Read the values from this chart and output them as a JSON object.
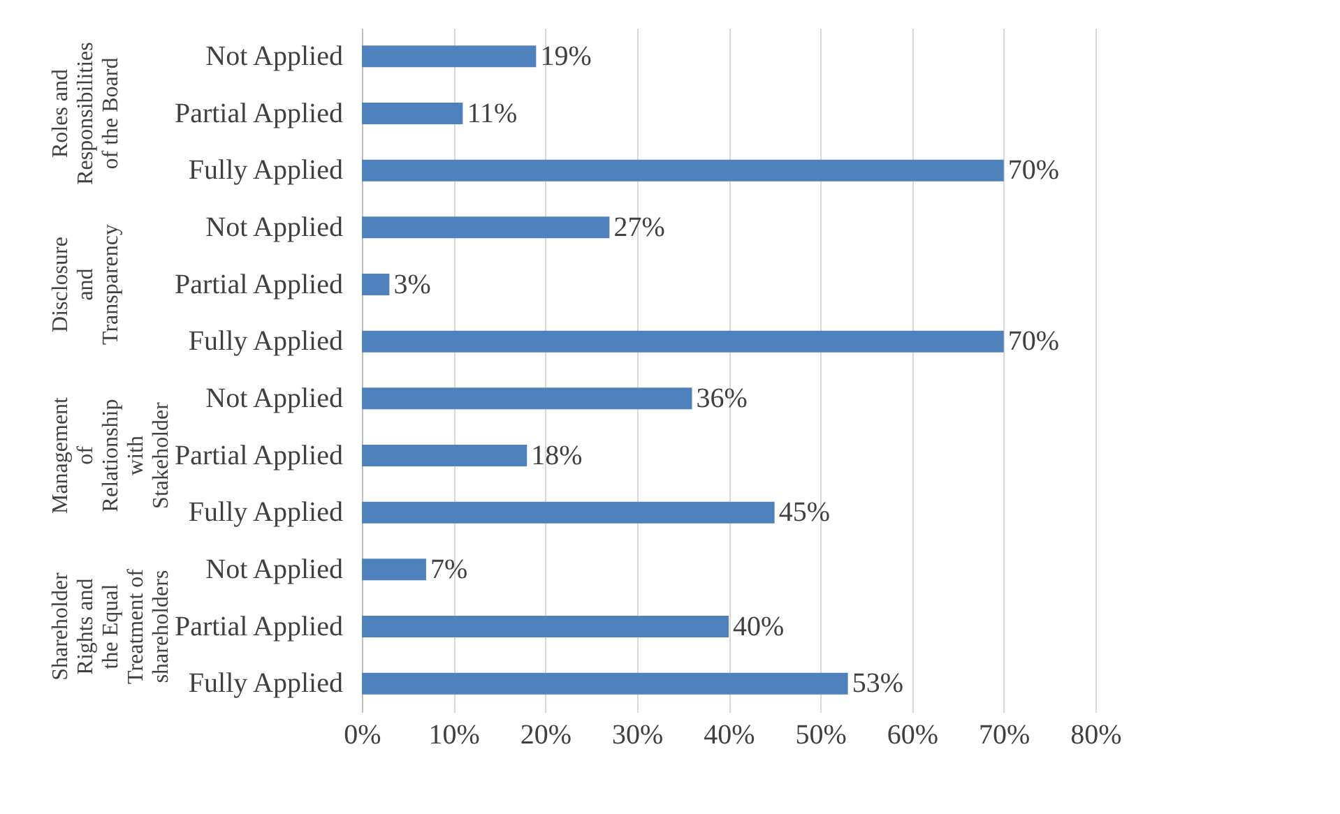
{
  "chart_data": {
    "type": "bar",
    "orientation": "horizontal",
    "categories": [
      "Not Applied",
      "Partial Applied",
      "Fully Applied",
      "Not Applied",
      "Partial Applied",
      "Fully Applied",
      "Not Applied",
      "Partial Applied",
      "Fully Applied",
      "Not Applied",
      "Partial Applied",
      "Fully Applied"
    ],
    "values": [
      19,
      11,
      70,
      27,
      3,
      70,
      36,
      18,
      45,
      7,
      40,
      53
    ],
    "value_labels": [
      "19%",
      "11%",
      "70%",
      "27%",
      "3%",
      "70%",
      "36%",
      "18%",
      "45%",
      "7%",
      "40%",
      "53%"
    ],
    "color": "#4f81bd",
    "xlim": [
      0,
      80
    ],
    "xticks": [
      {
        "value": 0,
        "label": "0%"
      },
      {
        "value": 10,
        "label": "10%"
      },
      {
        "value": 20,
        "label": "20%"
      },
      {
        "value": 30,
        "label": "30%"
      },
      {
        "value": 40,
        "label": "40%"
      },
      {
        "value": 50,
        "label": "50%"
      },
      {
        "value": 60,
        "label": "60%"
      },
      {
        "value": 70,
        "label": "70%"
      },
      {
        "value": 80,
        "label": "80%"
      }
    ],
    "grid": "x",
    "annotations": [
      "Roles and Responsibilities of the Board",
      "Disclosure and Transparency",
      "Management of Relationship with Stakeholder",
      "Shareholder Rights and the Equal Treatment of shareholders"
    ]
  }
}
